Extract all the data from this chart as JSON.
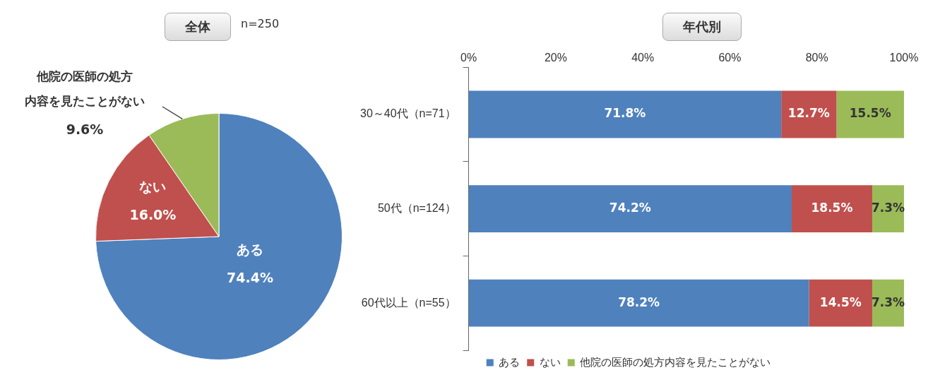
{
  "chart_data": [
    {
      "type": "pie",
      "title": "全体",
      "subtitle": "n=250",
      "categories": [
        "ある",
        "ない",
        "他院の医師の処方内容を見たことがない"
      ],
      "values": [
        74.4,
        16.0,
        9.6
      ],
      "colors": [
        "#4f81bd",
        "#c0504d",
        "#9bbb59"
      ],
      "value_labels": [
        "74.4%",
        "16.0%",
        "9.6%"
      ],
      "legend": false
    },
    {
      "type": "bar",
      "title": "年代別",
      "orientation": "horizontal",
      "stacked": true,
      "categories": [
        "30～40代（n=71）",
        "50代（n=124）",
        "60代以上（n=55）"
      ],
      "series": [
        {
          "name": "ある",
          "color": "#4f81bd",
          "values": [
            71.8,
            74.2,
            78.2
          ],
          "value_labels": [
            "71.8%",
            "74.2%",
            "78.2%"
          ]
        },
        {
          "name": "ない",
          "color": "#c0504d",
          "values": [
            12.7,
            18.5,
            14.5
          ],
          "value_labels": [
            "12.7%",
            "18.5%",
            "14.5%"
          ]
        },
        {
          "name": "他院の医師の処方内容を見たことがない",
          "color": "#9bbb59",
          "values": [
            15.5,
            7.3,
            7.3
          ],
          "value_labels": [
            "15.5%",
            "7.3%",
            "7.3%"
          ]
        }
      ],
      "xlim": [
        0,
        100
      ],
      "xticks": [
        {
          "value": 0,
          "label": "0%"
        },
        {
          "value": 20,
          "label": "20%"
        },
        {
          "value": 40,
          "label": "40%"
        },
        {
          "value": 60,
          "label": "60%"
        },
        {
          "value": 80,
          "label": "80%"
        },
        {
          "value": 100,
          "label": "100%"
        }
      ],
      "grid": false,
      "legend": "bottom"
    }
  ]
}
